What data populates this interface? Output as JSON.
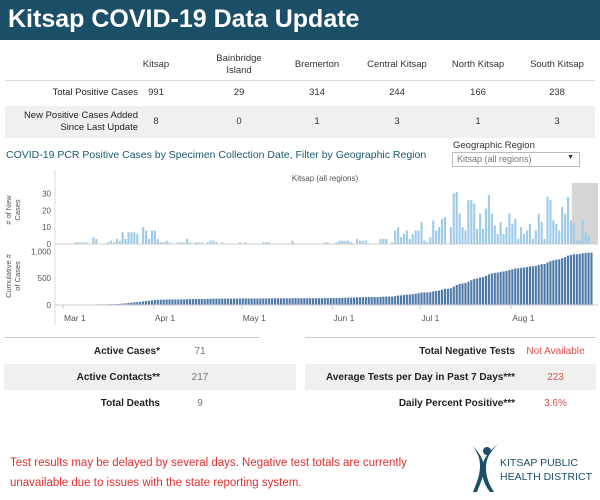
{
  "header": {
    "title": "Kitsap COVID-19 Data Update"
  },
  "summary_table": {
    "columns": [
      "Kitsap",
      "Bainbridge Island",
      "Bremerton",
      "Central Kitsap",
      "North Kitsap",
      "South Kitsap"
    ],
    "rows": [
      {
        "label": "Total Positive Cases",
        "values": [
          "991",
          "29",
          "314",
          "244",
          "166",
          "238"
        ]
      },
      {
        "label": "New Positive Cases Added Since Last Update",
        "values": [
          "8",
          "0",
          "1",
          "3",
          "1",
          "3"
        ]
      }
    ]
  },
  "chart_section": {
    "title": "COVID-19 PCR Positive Cases by Specimen Collection Date, Filter by Geographic Region",
    "filter_label": "Geographic Region",
    "filter_value": "Kitsap (all regions)"
  },
  "chart_data": {
    "type": "bar",
    "panel_title": "Kitsap (all regions)",
    "x_start": "Mar 1",
    "x_end": "Aug 28",
    "x_ticks": [
      "Mar 1",
      "Apr 1",
      "May 1",
      "Jun 1",
      "Jul 1",
      "Aug 1"
    ],
    "incomplete_period_start": "Aug 22",
    "colors": {
      "new": "#9fcbea",
      "cumulative": "#4e79a7",
      "incomplete_shade": "#d6d6d6"
    },
    "series": [
      {
        "ylabel": "# of New Cases",
        "y_ticks": [
          "0",
          "10",
          "20",
          "30"
        ],
        "ylim": [
          0,
          35
        ],
        "values": [
          0,
          0,
          0,
          0,
          1,
          1,
          1,
          1,
          1,
          0,
          4,
          3,
          0,
          0,
          0,
          1,
          2,
          1,
          3,
          2,
          7,
          3,
          7,
          7,
          7,
          6,
          0,
          10,
          8,
          3,
          8,
          8,
          3,
          1,
          1,
          2,
          1,
          0,
          0,
          1,
          1,
          1,
          3,
          1,
          0,
          1,
          1,
          1,
          0,
          1,
          2,
          2,
          1,
          0,
          1,
          0,
          0,
          0,
          0,
          0,
          1,
          0,
          1,
          0,
          0,
          0,
          0,
          0,
          1,
          1,
          1,
          0,
          0,
          0,
          0,
          0,
          0,
          0,
          2,
          0,
          0,
          0,
          0,
          0,
          0,
          0,
          0,
          0,
          0,
          1,
          1,
          0,
          0,
          1,
          2,
          2,
          2,
          2,
          1,
          0,
          3,
          2,
          2,
          2,
          0,
          0,
          0,
          0,
          3,
          3,
          3,
          0,
          1,
          8,
          10,
          4,
          6,
          8,
          3,
          6,
          8,
          8,
          13,
          2,
          1,
          4,
          14,
          8,
          10,
          15,
          16,
          0,
          10,
          30,
          31,
          18,
          10,
          8,
          26,
          26,
          24,
          9,
          18,
          9,
          21,
          29,
          18,
          11,
          6,
          13,
          6,
          10,
          18,
          12,
          15,
          3,
          10,
          6,
          8,
          12,
          3,
          8,
          18,
          13,
          3,
          28,
          26,
          14,
          12,
          8,
          22,
          18,
          28,
          14,
          12,
          2,
          2,
          14,
          7,
          5,
          0
        ]
      },
      {
        "ylabel": "Cumulative # of Cases",
        "y_ticks": [
          "0",
          "500",
          "1,000"
        ],
        "ylim": [
          0,
          1100
        ],
        "derived": "running total of new cases"
      }
    ]
  },
  "stats_left": [
    {
      "label": "Active Cases*",
      "value": "71"
    },
    {
      "label": "Active Contacts**",
      "value": "217"
    },
    {
      "label": "Total Deaths",
      "value": "9"
    }
  ],
  "stats_right": [
    {
      "label": "Total Negative Tests",
      "value": "Not Available"
    },
    {
      "label": "Average Tests per Day in Past 7 Days***",
      "value": "223"
    },
    {
      "label": "Daily Percent Positive***",
      "value": "3.6%"
    }
  ],
  "footer": {
    "note_line1": "Test results may be delayed by several days. Negative test totals  are currently",
    "note_line2": "unavailable due to issues with the state reporting system."
  },
  "logo": {
    "line1": "KITSAP PUBLIC",
    "line2": "HEALTH DISTRICT"
  }
}
